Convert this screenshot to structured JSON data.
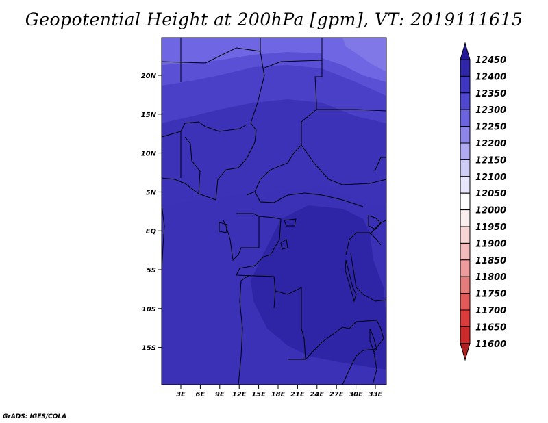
{
  "title": "Geopotential Height at 200hPa [gpm], VT: 2019111615",
  "footer": "GrADS: IGES/COLA",
  "lat_labels": [
    "20N",
    "15N",
    "10N",
    "5N",
    "EQ",
    "5S",
    "10S",
    "15S"
  ],
  "lon_labels": [
    "3E",
    "6E",
    "9E",
    "12E",
    "15E",
    "18E",
    "21E",
    "24E",
    "27E",
    "30E",
    "33E"
  ],
  "colorbar": {
    "levels": [
      11600,
      11650,
      11700,
      11750,
      11800,
      11850,
      11900,
      11950,
      12000,
      12050,
      12100,
      12150,
      12200,
      12250,
      12300,
      12350,
      12400,
      12450
    ],
    "labels": [
      "11600",
      "11650",
      "11700",
      "11750",
      "11800",
      "11850",
      "11900",
      "11950",
      "12000",
      "12050",
      "12100",
      "12150",
      "12200",
      "12250",
      "12300",
      "12350",
      "12400",
      "12450"
    ],
    "colors": [
      "#b22222",
      "#cc2b2b",
      "#dc3c3c",
      "#e05a5a",
      "#e57c7c",
      "#ec9c9c",
      "#f2baba",
      "#f7d5d5",
      "#fbeeee",
      "#ffffff",
      "#e8e6fa",
      "#cfccf5",
      "#b0aaf0",
      "#8d86e8",
      "#6c63df",
      "#5048cf",
      "#3f37bf",
      "#2f27a8",
      "#231a9a"
    ]
  },
  "map_fill_colors": {
    "band_12250": "#6e66e2",
    "band_12300": "#5a50d6",
    "band_12350": "#4a40c8",
    "band_12400": "#3b32b8",
    "band_12450": "#2e25a6"
  }
}
